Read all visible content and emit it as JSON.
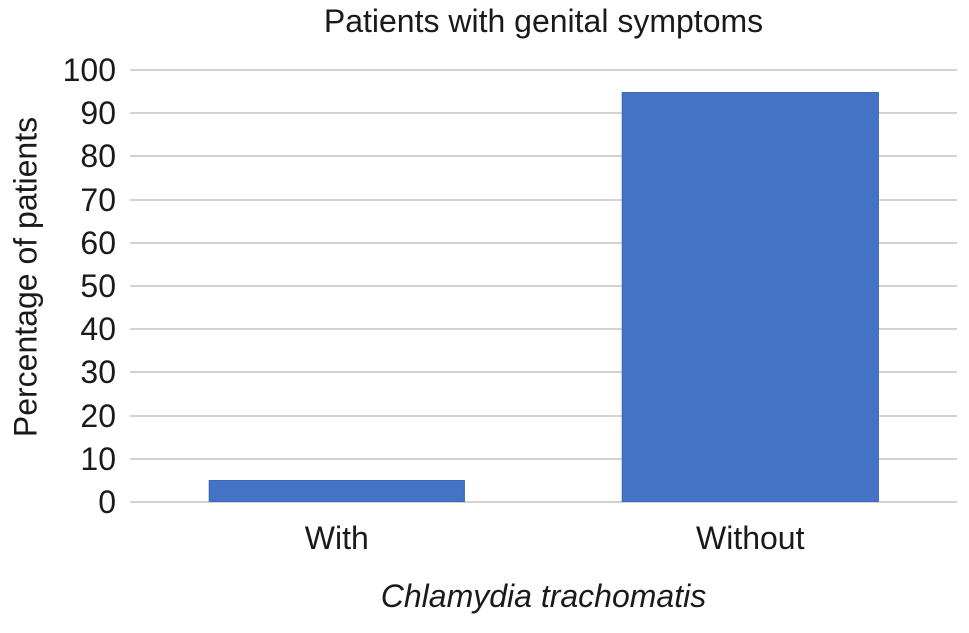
{
  "chart_data": {
    "type": "bar",
    "title": "Patients with genital symptoms",
    "xlabel": "Chlamydia trachomatis",
    "xlabel_style": "italic",
    "ylabel": "Percentage of patients",
    "categories": [
      "With",
      "Without"
    ],
    "values": [
      5,
      95
    ],
    "ylim": [
      0,
      100
    ],
    "yticks": [
      0,
      10,
      20,
      30,
      40,
      50,
      60,
      70,
      80,
      90,
      100
    ],
    "grid": "horizontal",
    "legend": "none",
    "colors": {
      "bar": "#4472C4",
      "bar_edge": "#3e69b5",
      "gridline": "#d2d2d2",
      "text": "#1a1a1a",
      "background": "#ffffff"
    }
  }
}
